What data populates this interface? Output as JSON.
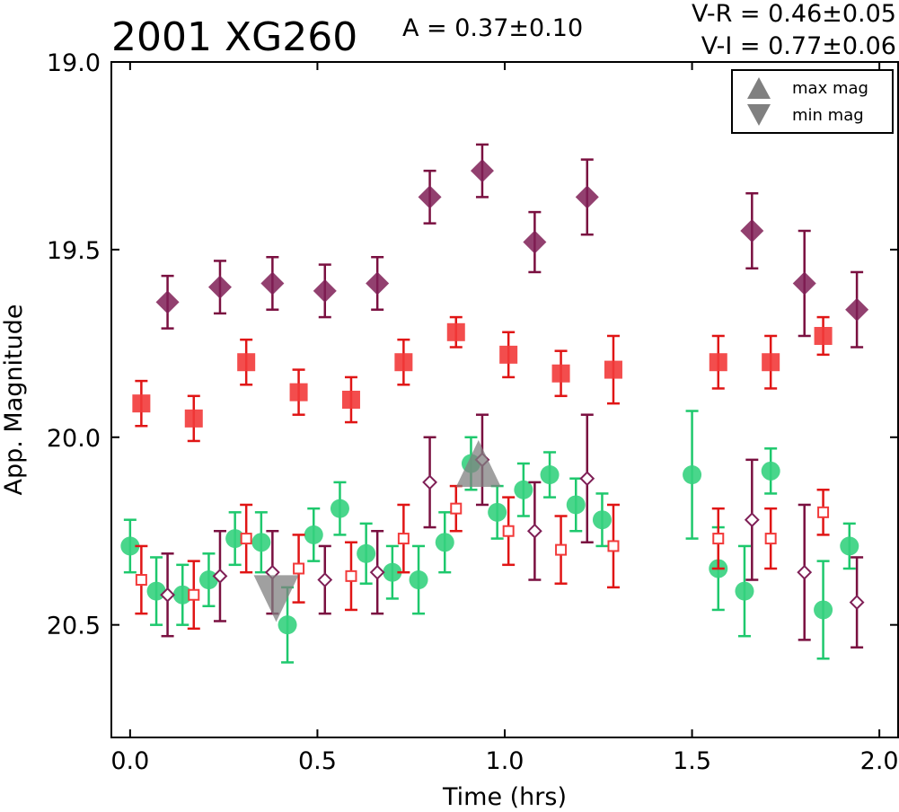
{
  "chart_data": {
    "type": "scatter",
    "title": "2001 XG260",
    "annotations": {
      "amplitude": "A  = 0.37±0.10",
      "vr": "V-R = 0.46±0.05",
      "vi": "V-I  = 0.77±0.06"
    },
    "xlabel": "Time (hrs)",
    "ylabel": "App. Magnitude",
    "xlim": [
      -0.05,
      2.05
    ],
    "ylim": [
      20.8,
      19.0
    ],
    "y_inverted": true,
    "xticks": [
      0.0,
      0.5,
      1.0,
      1.5,
      2.0
    ],
    "xtick_labels": [
      "0.0",
      "0.5",
      "1.0",
      "1.5",
      "2.0"
    ],
    "yticks": [
      19.0,
      19.5,
      20.0,
      20.5
    ],
    "ytick_labels": [
      "19.0",
      "19.5",
      "20.0",
      "20.5"
    ],
    "grid": false,
    "legend": {
      "placement": "top-right",
      "entries": [
        {
          "label": "max mag",
          "marker": "triangle-up",
          "color": "#808080"
        },
        {
          "label": "min mag",
          "marker": "triangle-down",
          "color": "#808080"
        }
      ]
    },
    "series": [
      {
        "marker": "diamond-filled",
        "color": "#7f1f56",
        "errcolor": "#7a1040",
        "x": [
          0.1,
          0.24,
          0.38,
          0.52,
          0.66,
          0.8,
          0.94,
          1.08,
          1.22,
          1.66,
          1.8,
          1.94
        ],
        "y": [
          19.64,
          19.6,
          19.59,
          19.61,
          19.59,
          19.36,
          19.29,
          19.48,
          19.36,
          19.45,
          19.59,
          19.66
        ],
        "err": [
          0.07,
          0.07,
          0.07,
          0.07,
          0.07,
          0.07,
          0.07,
          0.08,
          0.1,
          0.1,
          0.14,
          0.1
        ]
      },
      {
        "marker": "square-filled",
        "color": "#f23a3a",
        "errcolor": "#e01515",
        "x": [
          0.03,
          0.17,
          0.31,
          0.45,
          0.59,
          0.73,
          0.87,
          1.01,
          1.15,
          1.29,
          1.57,
          1.71,
          1.85
        ],
        "y": [
          19.91,
          19.95,
          19.8,
          19.88,
          19.9,
          19.8,
          19.72,
          19.78,
          19.83,
          19.82,
          19.8,
          19.8,
          19.73
        ],
        "err": [
          0.06,
          0.06,
          0.06,
          0.06,
          0.06,
          0.06,
          0.04,
          0.06,
          0.06,
          0.09,
          0.07,
          0.07,
          0.05
        ]
      },
      {
        "marker": "circle-filled",
        "color": "#35d27e",
        "errcolor": "#1ec86d",
        "x": [
          0.0,
          0.07,
          0.14,
          0.21,
          0.28,
          0.35,
          0.42,
          0.49,
          0.56,
          0.63,
          0.7,
          0.77,
          0.84,
          0.91,
          0.98,
          1.05,
          1.12,
          1.19,
          1.26,
          1.5,
          1.57,
          1.64,
          1.71,
          1.85,
          1.92
        ],
        "y": [
          20.29,
          20.41,
          20.42,
          20.38,
          20.27,
          20.28,
          20.5,
          20.26,
          20.19,
          20.31,
          20.36,
          20.38,
          20.28,
          20.07,
          20.2,
          20.14,
          20.1,
          20.18,
          20.22,
          20.1,
          20.35,
          20.41,
          20.09,
          20.46,
          20.29
        ],
        "err": [
          0.07,
          0.09,
          0.08,
          0.07,
          0.07,
          0.08,
          0.1,
          0.07,
          0.07,
          0.08,
          0.07,
          0.09,
          0.08,
          0.07,
          0.07,
          0.07,
          0.06,
          0.07,
          0.07,
          0.17,
          0.11,
          0.12,
          0.06,
          0.13,
          0.06
        ]
      },
      {
        "marker": "diamond-open",
        "color": "#7f1f56",
        "errcolor": "#7a1040",
        "x": [
          0.1,
          0.24,
          0.38,
          0.52,
          0.66,
          0.8,
          0.94,
          1.08,
          1.22,
          1.66,
          1.8,
          1.94
        ],
        "y": [
          20.42,
          20.37,
          20.36,
          20.38,
          20.36,
          20.12,
          20.06,
          20.25,
          20.11,
          20.22,
          20.36,
          20.44
        ],
        "err": [
          0.11,
          0.12,
          0.11,
          0.09,
          0.11,
          0.12,
          0.12,
          0.13,
          0.17,
          0.16,
          0.18,
          0.12
        ]
      },
      {
        "marker": "square-open",
        "color": "#f23a3a",
        "errcolor": "#e01515",
        "x": [
          0.03,
          0.17,
          0.31,
          0.45,
          0.59,
          0.73,
          0.87,
          1.01,
          1.15,
          1.29,
          1.57,
          1.71,
          1.85
        ],
        "y": [
          20.38,
          20.42,
          20.27,
          20.35,
          20.37,
          20.27,
          20.19,
          20.25,
          20.3,
          20.29,
          20.27,
          20.27,
          20.2
        ],
        "err": [
          0.09,
          0.09,
          0.09,
          0.09,
          0.09,
          0.09,
          0.06,
          0.09,
          0.09,
          0.11,
          0.08,
          0.08,
          0.06
        ]
      }
    ],
    "extrema_markers": [
      {
        "kind": "max",
        "x": 0.93,
        "y": 20.07,
        "color": "#808080"
      },
      {
        "kind": "min",
        "x": 0.39,
        "y": 20.43,
        "color": "#808080"
      }
    ]
  }
}
